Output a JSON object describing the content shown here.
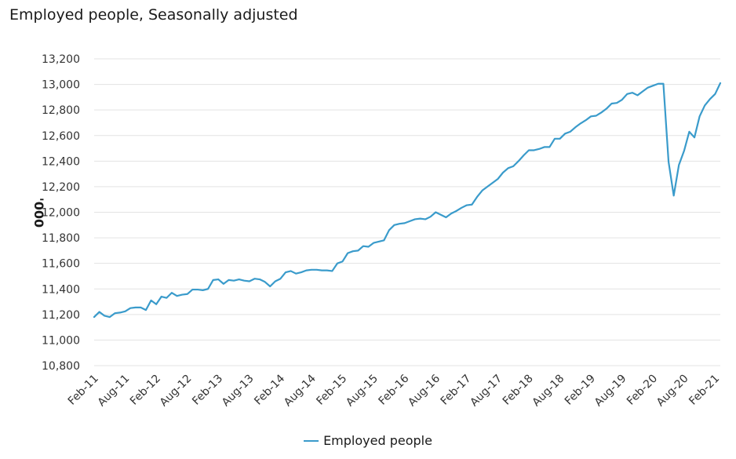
{
  "chart_data": {
    "type": "line",
    "title": "Employed people, Seasonally adjusted",
    "xlabel": "",
    "ylabel": "'000",
    "ylim": [
      10800,
      13200
    ],
    "yticks": [
      10800,
      11000,
      11200,
      11400,
      11600,
      11800,
      12000,
      12200,
      12400,
      12600,
      12800,
      13000,
      13200
    ],
    "ytick_labels": [
      "10,800",
      "11,000",
      "11,200",
      "11,400",
      "11,600",
      "11,800",
      "12,000",
      "12,200",
      "12,400",
      "12,600",
      "12,800",
      "13,000",
      "13,200"
    ],
    "xtick_labels": [
      "Feb-11",
      "Aug-11",
      "Feb-12",
      "Aug-12",
      "Feb-13",
      "Aug-13",
      "Feb-14",
      "Aug-14",
      "Feb-15",
      "Aug-15",
      "Feb-16",
      "Aug-16",
      "Feb-17",
      "Aug-17",
      "Feb-18",
      "Aug-18",
      "Feb-19",
      "Aug-19",
      "Feb-20",
      "Aug-20",
      "Feb-21"
    ],
    "grid": true,
    "legend_position": "bottom",
    "x_start": "Feb-11",
    "x_end": "Feb-21",
    "x_frequency": "monthly",
    "series": [
      {
        "name": "Employed people",
        "color": "#3a9bcb",
        "values": [
          11180,
          11220,
          11190,
          11180,
          11210,
          11215,
          11225,
          11250,
          11255,
          11255,
          11235,
          11310,
          11280,
          11340,
          11330,
          11370,
          11345,
          11355,
          11360,
          11395,
          11395,
          11390,
          11400,
          11470,
          11475,
          11440,
          11470,
          11465,
          11475,
          11465,
          11460,
          11480,
          11475,
          11455,
          11420,
          11460,
          11480,
          11530,
          11540,
          11520,
          11530,
          11545,
          11550,
          11550,
          11545,
          11545,
          11540,
          11600,
          11615,
          11680,
          11695,
          11700,
          11735,
          11730,
          11760,
          11770,
          11780,
          11860,
          11900,
          11910,
          11915,
          11930,
          11945,
          11950,
          11945,
          11965,
          12000,
          11980,
          11960,
          11990,
          12010,
          12035,
          12055,
          12060,
          12120,
          12170,
          12200,
          12230,
          12260,
          12310,
          12345,
          12360,
          12400,
          12445,
          12485,
          12485,
          12495,
          12510,
          12510,
          12575,
          12575,
          12615,
          12630,
          12665,
          12695,
          12720,
          12750,
          12755,
          12780,
          12810,
          12850,
          12855,
          12880,
          12925,
          12935,
          12915,
          12945,
          12975,
          12990,
          13005,
          13005,
          12395,
          12130,
          12370,
          12480,
          12630,
          12585,
          12750,
          12835,
          12885,
          12925,
          13010
        ]
      }
    ]
  }
}
